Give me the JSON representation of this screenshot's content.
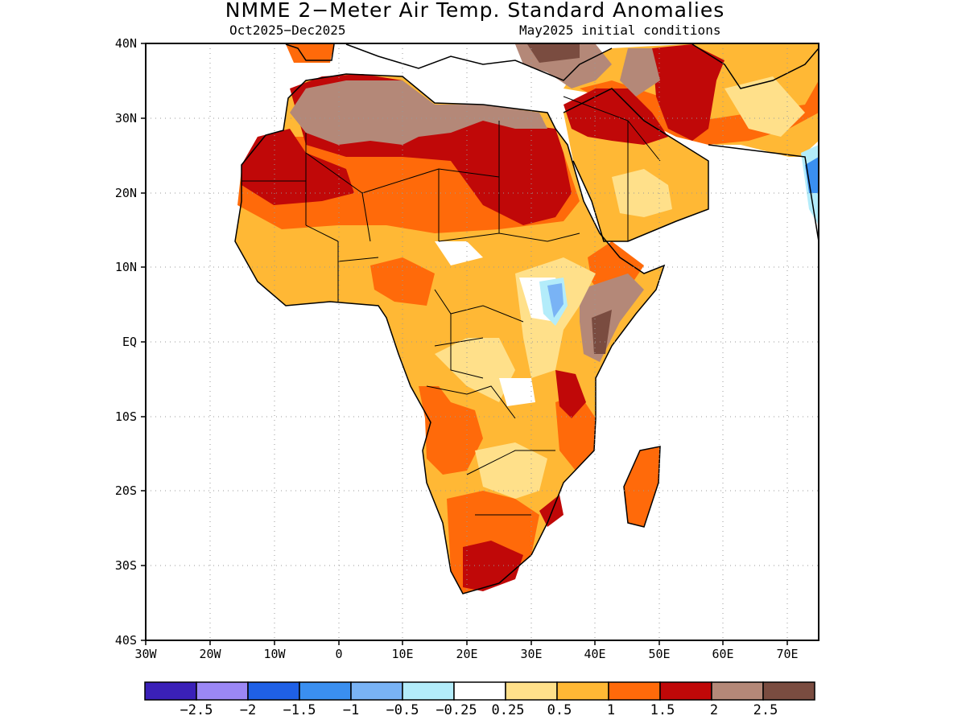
{
  "title": "NMME 2−Meter Air Temp. Standard Anomalies",
  "subtitle_left": "Oct2025−Dec2025",
  "subtitle_right": "May2025 initial conditions",
  "lat_labels": [
    "40N",
    "30N",
    "20N",
    "10N",
    "EQ",
    "10S",
    "20S",
    "30S",
    "40S"
  ],
  "lon_labels": [
    "30W",
    "20W",
    "10W",
    "0",
    "10E",
    "20E",
    "30E",
    "40E",
    "50E",
    "60E",
    "70E"
  ],
  "colorbar": {
    "colors": [
      "#3a20b8",
      "#9b87f5",
      "#1f60e6",
      "#3a8ff0",
      "#79b3f5",
      "#b3ecfa",
      "#ffffff",
      "#ffe08a",
      "#ffb835",
      "#ff6a0a",
      "#c00808",
      "#b48878",
      "#7a4c40"
    ],
    "tick_labels": [
      "−2.5",
      "−2",
      "−1.5",
      "−1",
      "−0.5",
      "−0.25",
      "0.25",
      "0.5",
      "1",
      "1.5",
      "2",
      "2.5"
    ]
  }
}
